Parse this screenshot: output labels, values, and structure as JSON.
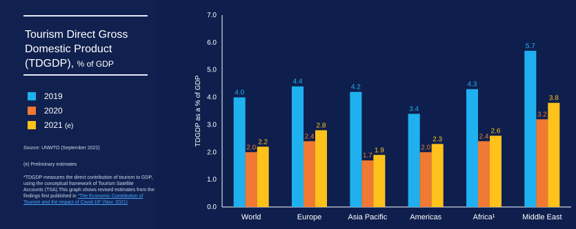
{
  "panel": {
    "title": "Tourism Direct Gross Domestic Product (TDGDP),",
    "title_unit": "% of GDP",
    "legend": [
      {
        "label": "2019",
        "color": "#1fb0f0"
      },
      {
        "label": "2020",
        "color": "#f07a33"
      },
      {
        "label": "2021",
        "suffix": "(e)",
        "color": "#ffc21a"
      }
    ],
    "source": "Source: UNWTO (September 2022)",
    "prelim": "(e) Preliminary estimates",
    "note_text": "*TDGDP measures the direct contribution of tourism to GDP, using the conceptual framework of Tourism Satellite Accounts (TSA).This graph shows revised estimates from the findings first published in",
    "note_link": "\"The Economic Contribution of Tourism and the Impact of Covid-19\" (Nov. 2021)"
  },
  "chart_data": {
    "type": "bar",
    "categories": [
      "World",
      "Europe",
      "Asia Pacific",
      "Americas",
      "Africa¹",
      "Middle East"
    ],
    "series": [
      {
        "name": "2019",
        "values": [
          4.0,
          4.4,
          4.2,
          3.4,
          4.3,
          5.7
        ],
        "color": "#1fb0f0"
      },
      {
        "name": "2020",
        "values": [
          2.0,
          2.4,
          1.7,
          2.0,
          2.4,
          3.2
        ],
        "color": "#f07a33"
      },
      {
        "name": "2021 (e)",
        "values": [
          2.2,
          2.8,
          1.9,
          2.3,
          2.6,
          3.8
        ],
        "color": "#ffc21a"
      }
    ],
    "ylabel": "TDGDP as a % of GDP",
    "ylim": [
      0,
      7
    ],
    "yticks": [
      "0.0",
      "1.0",
      "2.0",
      "3.0",
      "4.0",
      "5.0",
      "6.0",
      "7.0"
    ],
    "grid": false,
    "legend_position": "left"
  }
}
